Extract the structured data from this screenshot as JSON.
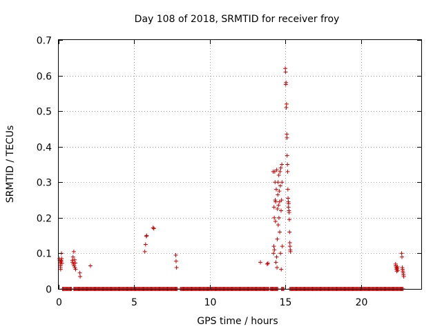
{
  "chart_data": {
    "type": "scatter",
    "title": "Day 108 of 2018, SRMTID for receiver froy",
    "xlabel": "GPS time / hours",
    "ylabel": "SRMTID / TECUs",
    "xlim": [
      0,
      24
    ],
    "ylim": [
      0,
      0.7
    ],
    "xticks": [
      0,
      5,
      10,
      15,
      20
    ],
    "yticks": [
      0,
      0.1,
      0.2,
      0.3,
      0.4,
      0.5,
      0.6,
      0.7
    ],
    "grid": true,
    "marker": "+",
    "color": "#cc0000",
    "series": [
      {
        "name": "SRMTID",
        "baseline_zero_intervals": [
          [
            0.25,
            0.85
          ],
          [
            1.0,
            7.85
          ],
          [
            8.05,
            13.9
          ],
          [
            14.0,
            14.5
          ],
          [
            14.75,
            14.9
          ],
          [
            15.3,
            22.8
          ]
        ],
        "points": [
          [
            0.05,
            0.085
          ],
          [
            0.07,
            0.08
          ],
          [
            0.09,
            0.075
          ],
          [
            0.1,
            0.07
          ],
          [
            0.11,
            0.065
          ],
          [
            0.12,
            0.06
          ],
          [
            0.13,
            0.055
          ],
          [
            0.15,
            0.08
          ],
          [
            0.17,
            0.078
          ],
          [
            0.18,
            0.1
          ],
          [
            0.2,
            0.085
          ],
          [
            0.22,
            0.072
          ],
          [
            0.9,
            0.08
          ],
          [
            0.92,
            0.075
          ],
          [
            0.95,
            0.09
          ],
          [
            0.97,
            0.07
          ],
          [
            1.0,
            0.105
          ],
          [
            1.02,
            0.065
          ],
          [
            1.05,
            0.082
          ],
          [
            1.07,
            0.06
          ],
          [
            1.1,
            0.073
          ],
          [
            1.12,
            0.055
          ],
          [
            1.4,
            0.045
          ],
          [
            1.42,
            0.035
          ],
          [
            2.1,
            0.065
          ],
          [
            5.7,
            0.105
          ],
          [
            5.75,
            0.125
          ],
          [
            5.8,
            0.148
          ],
          [
            5.82,
            0.15
          ],
          [
            6.25,
            0.172
          ],
          [
            6.3,
            0.17
          ],
          [
            7.75,
            0.095
          ],
          [
            7.77,
            0.078
          ],
          [
            7.8,
            0.06
          ],
          [
            13.35,
            0.075
          ],
          [
            13.8,
            0.07
          ],
          [
            13.85,
            0.072
          ],
          [
            14.2,
            0.33
          ],
          [
            14.22,
            0.1
          ],
          [
            14.24,
            0.12
          ],
          [
            14.25,
            0.23
          ],
          [
            14.27,
            0.2
          ],
          [
            14.28,
            0.11
          ],
          [
            14.3,
            0.33
          ],
          [
            14.32,
            0.3
          ],
          [
            14.33,
            0.25
          ],
          [
            14.35,
            0.19
          ],
          [
            14.36,
            0.245
          ],
          [
            14.38,
            0.075
          ],
          [
            14.4,
            0.28
          ],
          [
            14.42,
            0.09
          ],
          [
            14.43,
            0.335
          ],
          [
            14.45,
            0.06
          ],
          [
            14.47,
            0.14
          ],
          [
            14.48,
            0.225
          ],
          [
            14.5,
            0.265
          ],
          [
            14.52,
            0.3
          ],
          [
            14.53,
            0.18
          ],
          [
            14.55,
            0.235
          ],
          [
            14.57,
            0.32
          ],
          [
            14.58,
            0.2
          ],
          [
            14.6,
            0.275
          ],
          [
            14.62,
            0.245
          ],
          [
            14.63,
            0.16
          ],
          [
            14.65,
            0.33
          ],
          [
            14.67,
            0.29
          ],
          [
            14.68,
            0.1
          ],
          [
            14.7,
            0.34
          ],
          [
            14.72,
            0.22
          ],
          [
            14.73,
            0.055
          ],
          [
            14.75,
            0.25
          ],
          [
            14.77,
            0.35
          ],
          [
            14.78,
            0.3
          ],
          [
            14.8,
            0.12
          ],
          [
            15.0,
            0.62
          ],
          [
            15.02,
            0.61
          ],
          [
            15.03,
            0.575
          ],
          [
            15.05,
            0.58
          ],
          [
            15.06,
            0.51
          ],
          [
            15.08,
            0.52
          ],
          [
            15.1,
            0.435
          ],
          [
            15.11,
            0.425
          ],
          [
            15.12,
            0.375
          ],
          [
            15.14,
            0.35
          ],
          [
            15.15,
            0.33
          ],
          [
            15.17,
            0.28
          ],
          [
            15.18,
            0.255
          ],
          [
            15.2,
            0.245
          ],
          [
            15.21,
            0.23
          ],
          [
            15.22,
            0.24
          ],
          [
            15.24,
            0.22
          ],
          [
            15.25,
            0.215
          ],
          [
            15.27,
            0.195
          ],
          [
            15.28,
            0.16
          ],
          [
            15.3,
            0.13
          ],
          [
            15.31,
            0.12
          ],
          [
            15.33,
            0.11
          ],
          [
            15.34,
            0.105
          ],
          [
            22.3,
            0.07
          ],
          [
            22.32,
            0.065
          ],
          [
            22.34,
            0.06
          ],
          [
            22.36,
            0.055
          ],
          [
            22.38,
            0.05
          ],
          [
            22.4,
            0.058
          ],
          [
            22.42,
            0.062
          ],
          [
            22.44,
            0.052
          ],
          [
            22.7,
            0.1
          ],
          [
            22.72,
            0.09
          ],
          [
            22.74,
            0.06
          ],
          [
            22.76,
            0.055
          ],
          [
            22.78,
            0.05
          ],
          [
            22.8,
            0.045
          ],
          [
            22.82,
            0.04
          ],
          [
            22.84,
            0.035
          ]
        ]
      }
    ]
  }
}
